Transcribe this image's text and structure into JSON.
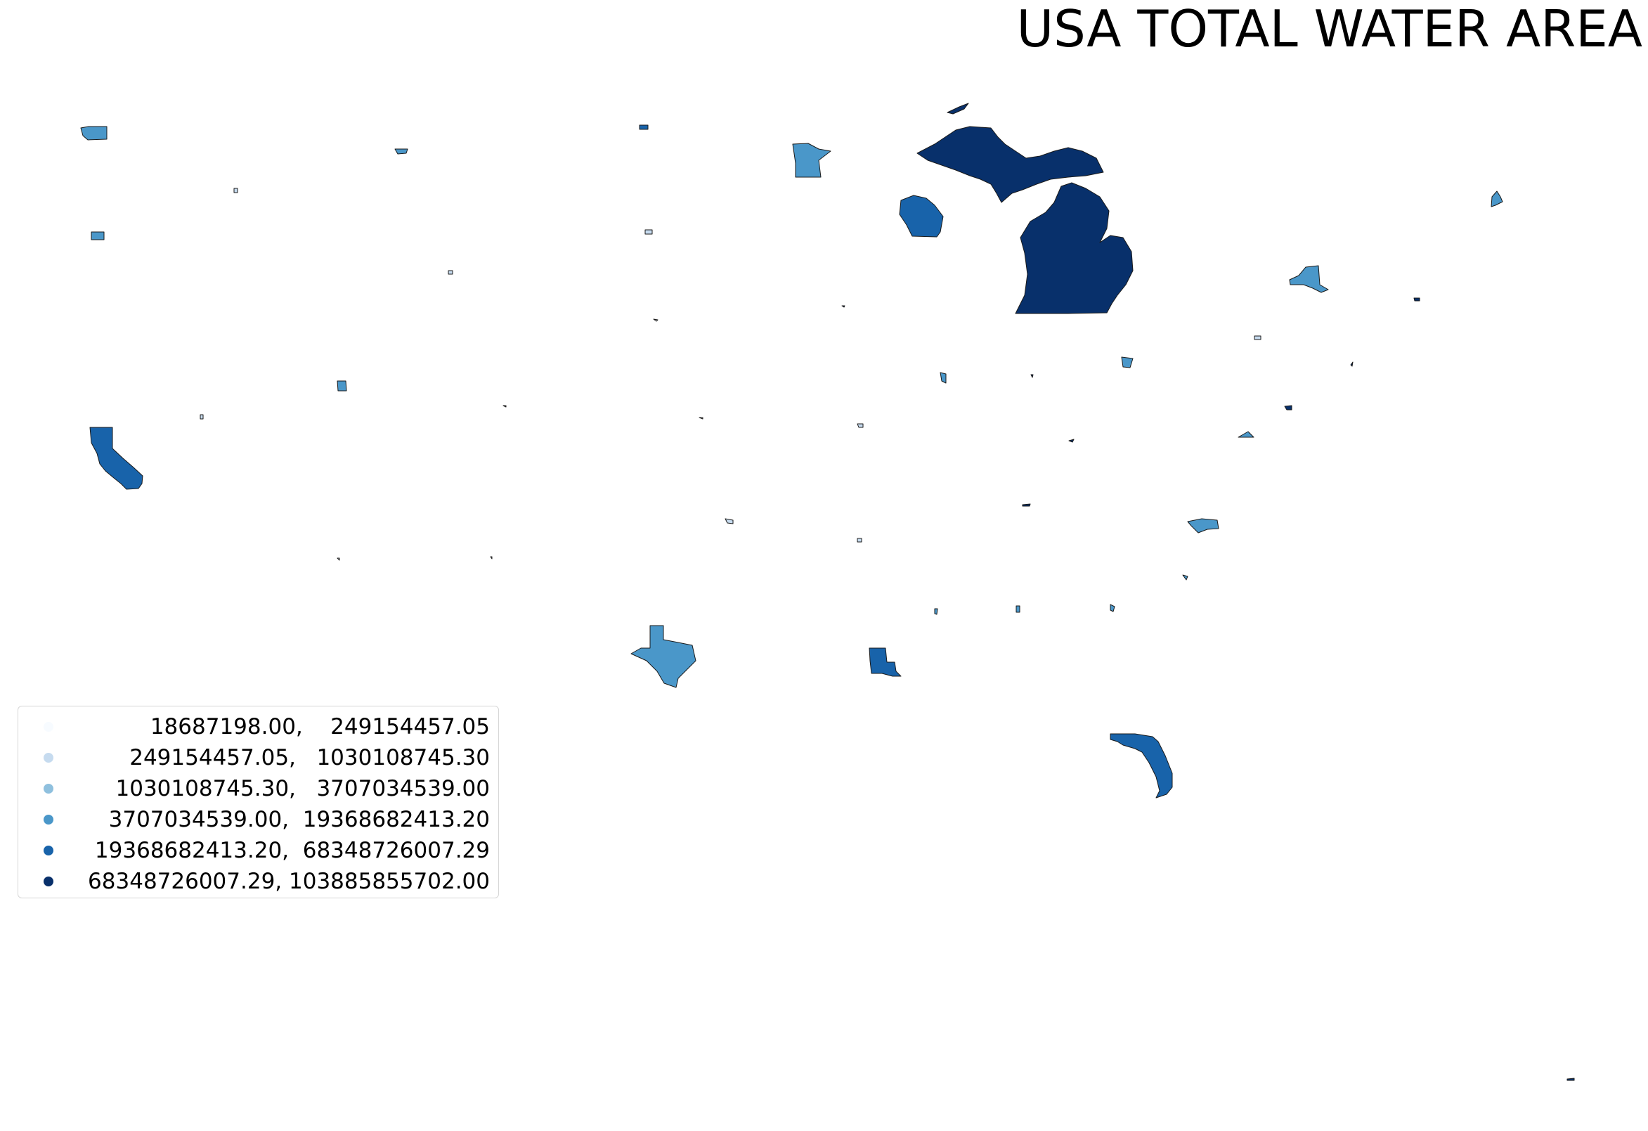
{
  "title": "USA TOTAL WATER AREA",
  "legend": {
    "items": [
      {
        "label": "18687198.00,    249154457.05",
        "color": "#f7fbff"
      },
      {
        "label": "249154457.05,   1030108745.30",
        "color": "#c6dbef"
      },
      {
        "label": "1030108745.30,   3707034539.00",
        "color": "#8fc0de"
      },
      {
        "label": "3707034539.00,  19368682413.20",
        "color": "#4a97c9"
      },
      {
        "label": "19368682413.20,  68348726007.29",
        "color": "#1863aa"
      },
      {
        "label": "68348726007.29, 103885855702.00",
        "color": "#08306b"
      }
    ]
  },
  "regions": [
    {
      "name": "Michigan",
      "class": 5
    },
    {
      "name": "Florida",
      "class": 4
    },
    {
      "name": "California",
      "class": 4
    },
    {
      "name": "Louisiana",
      "class": 4
    },
    {
      "name": "Wisconsin",
      "class": 4
    },
    {
      "name": "Texas",
      "class": 3
    },
    {
      "name": "Minnesota",
      "class": 3
    },
    {
      "name": "New York",
      "class": 3
    },
    {
      "name": "North Carolina",
      "class": 3
    },
    {
      "name": "Washington",
      "class": 3
    },
    {
      "name": "Maine",
      "class": 3
    }
  ]
}
